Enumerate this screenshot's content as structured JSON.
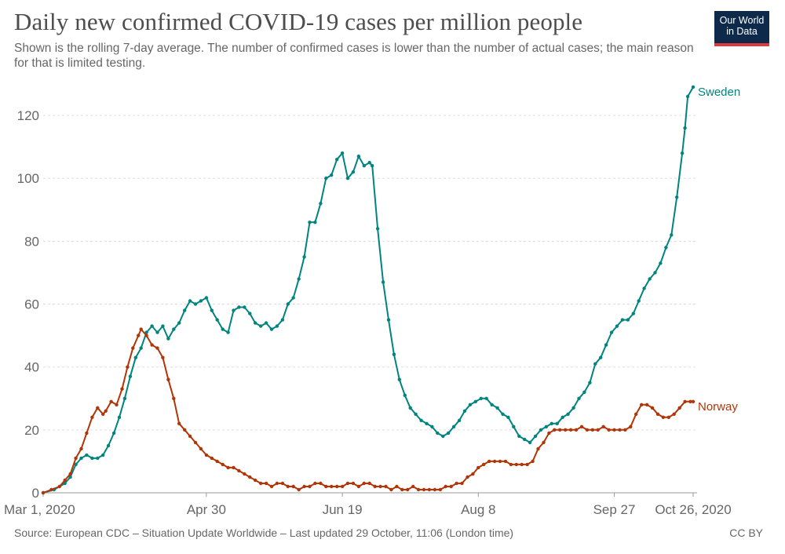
{
  "header": {
    "title": "Daily new confirmed COVID-19 cases per million people",
    "subtitle": "Shown is the rolling 7-day average. The number of confirmed cases is lower than the number of actual cases; the main reason for that is limited testing.",
    "logo_line1": "Our World",
    "logo_line2": "in Data"
  },
  "footer": {
    "source": "Source: European CDC – Situation Update Worldwide – Last updated 29 October, 11:06 (London time)",
    "license": "CC BY"
  },
  "colors": {
    "Sweden": "#00847e",
    "Norway": "#b13507",
    "grid": "#dddddd",
    "axis": "#999999"
  },
  "chart_data": {
    "type": "line",
    "title": "Daily new confirmed COVID-19 cases per million people",
    "xlabel": "",
    "ylabel": "",
    "x_domain_days": [
      0,
      239
    ],
    "ylim": [
      0,
      130
    ],
    "yticks": [
      0,
      20,
      40,
      60,
      80,
      100,
      120
    ],
    "xticks": [
      {
        "day": 0,
        "label": "Mar 1, 2020"
      },
      {
        "day": 60,
        "label": "Apr 30"
      },
      {
        "day": 110,
        "label": "Jun 19"
      },
      {
        "day": 160,
        "label": "Aug 8"
      },
      {
        "day": 210,
        "label": "Sep 27"
      },
      {
        "day": 239,
        "label": "Oct 26, 2020"
      }
    ],
    "grid": true,
    "series": [
      {
        "name": "Sweden",
        "points": [
          [
            0,
            0
          ],
          [
            4,
            1
          ],
          [
            8,
            3
          ],
          [
            10,
            5
          ],
          [
            12,
            9
          ],
          [
            14,
            11
          ],
          [
            16,
            12
          ],
          [
            18,
            11
          ],
          [
            20,
            11
          ],
          [
            22,
            12
          ],
          [
            24,
            15
          ],
          [
            26,
            19
          ],
          [
            28,
            24
          ],
          [
            30,
            30
          ],
          [
            32,
            37
          ],
          [
            34,
            43
          ],
          [
            36,
            46
          ],
          [
            38,
            51
          ],
          [
            40,
            53
          ],
          [
            42,
            51
          ],
          [
            44,
            53
          ],
          [
            46,
            49
          ],
          [
            48,
            52
          ],
          [
            50,
            54
          ],
          [
            52,
            58
          ],
          [
            54,
            61
          ],
          [
            56,
            60
          ],
          [
            58,
            61
          ],
          [
            60,
            62
          ],
          [
            62,
            58
          ],
          [
            64,
            55
          ],
          [
            66,
            52
          ],
          [
            68,
            51
          ],
          [
            70,
            58
          ],
          [
            72,
            59
          ],
          [
            74,
            59
          ],
          [
            76,
            57
          ],
          [
            78,
            54
          ],
          [
            80,
            53
          ],
          [
            82,
            54
          ],
          [
            84,
            52
          ],
          [
            86,
            53
          ],
          [
            88,
            55
          ],
          [
            90,
            60
          ],
          [
            92,
            62
          ],
          [
            94,
            68
          ],
          [
            96,
            75
          ],
          [
            98,
            86
          ],
          [
            100,
            86
          ],
          [
            102,
            92
          ],
          [
            104,
            100
          ],
          [
            106,
            101
          ],
          [
            108,
            106
          ],
          [
            110,
            108
          ],
          [
            112,
            100
          ],
          [
            114,
            102
          ],
          [
            116,
            107
          ],
          [
            118,
            104
          ],
          [
            120,
            105
          ],
          [
            121,
            104
          ],
          [
            123,
            84
          ],
          [
            125,
            67
          ],
          [
            127,
            55
          ],
          [
            129,
            44
          ],
          [
            131,
            36
          ],
          [
            133,
            31
          ],
          [
            135,
            27
          ],
          [
            137,
            25
          ],
          [
            139,
            23
          ],
          [
            141,
            22
          ],
          [
            143,
            21
          ],
          [
            145,
            19
          ],
          [
            147,
            18
          ],
          [
            149,
            19
          ],
          [
            151,
            21
          ],
          [
            153,
            23
          ],
          [
            155,
            26
          ],
          [
            157,
            28
          ],
          [
            159,
            29
          ],
          [
            161,
            30
          ],
          [
            163,
            30
          ],
          [
            165,
            28
          ],
          [
            167,
            27
          ],
          [
            169,
            25
          ],
          [
            171,
            24
          ],
          [
            173,
            21
          ],
          [
            175,
            18
          ],
          [
            177,
            17
          ],
          [
            179,
            16
          ],
          [
            181,
            18
          ],
          [
            183,
            20
          ],
          [
            185,
            21
          ],
          [
            187,
            22
          ],
          [
            189,
            22
          ],
          [
            191,
            24
          ],
          [
            193,
            25
          ],
          [
            195,
            27
          ],
          [
            197,
            30
          ],
          [
            199,
            32
          ],
          [
            201,
            35
          ],
          [
            203,
            41
          ],
          [
            205,
            43
          ],
          [
            207,
            47
          ],
          [
            209,
            51
          ],
          [
            211,
            53
          ],
          [
            213,
            55
          ],
          [
            215,
            55
          ],
          [
            217,
            57
          ],
          [
            219,
            61
          ],
          [
            221,
            65
          ],
          [
            223,
            68
          ],
          [
            225,
            70
          ],
          [
            227,
            73
          ],
          [
            229,
            78
          ],
          [
            231,
            82
          ],
          [
            233,
            94
          ],
          [
            235,
            108
          ],
          [
            236,
            116
          ],
          [
            237,
            126
          ],
          [
            239,
            129
          ]
        ]
      },
      {
        "name": "Norway",
        "points": [
          [
            0,
            0
          ],
          [
            3,
            1
          ],
          [
            6,
            2
          ],
          [
            8,
            4
          ],
          [
            10,
            6
          ],
          [
            12,
            11
          ],
          [
            14,
            14
          ],
          [
            16,
            19
          ],
          [
            18,
            24
          ],
          [
            20,
            27
          ],
          [
            22,
            25
          ],
          [
            23,
            26
          ],
          [
            25,
            29
          ],
          [
            27,
            28
          ],
          [
            29,
            33
          ],
          [
            31,
            40
          ],
          [
            33,
            46
          ],
          [
            35,
            50
          ],
          [
            36,
            52
          ],
          [
            38,
            50
          ],
          [
            40,
            47
          ],
          [
            42,
            46
          ],
          [
            44,
            43
          ],
          [
            46,
            36
          ],
          [
            48,
            30
          ],
          [
            50,
            22
          ],
          [
            52,
            20
          ],
          [
            54,
            18
          ],
          [
            56,
            16
          ],
          [
            58,
            14
          ],
          [
            60,
            12
          ],
          [
            62,
            11
          ],
          [
            64,
            10
          ],
          [
            66,
            9
          ],
          [
            68,
            8
          ],
          [
            70,
            8
          ],
          [
            72,
            7
          ],
          [
            74,
            6
          ],
          [
            76,
            5
          ],
          [
            78,
            4
          ],
          [
            80,
            3
          ],
          [
            82,
            3
          ],
          [
            84,
            2
          ],
          [
            86,
            3
          ],
          [
            88,
            3
          ],
          [
            90,
            2
          ],
          [
            92,
            2
          ],
          [
            94,
            1
          ],
          [
            96,
            2
          ],
          [
            98,
            2
          ],
          [
            100,
            3
          ],
          [
            102,
            3
          ],
          [
            104,
            2
          ],
          [
            106,
            2
          ],
          [
            108,
            2
          ],
          [
            110,
            2
          ],
          [
            112,
            3
          ],
          [
            114,
            3
          ],
          [
            116,
            2
          ],
          [
            118,
            3
          ],
          [
            120,
            3
          ],
          [
            122,
            2
          ],
          [
            124,
            2
          ],
          [
            126,
            2
          ],
          [
            128,
            1
          ],
          [
            130,
            2
          ],
          [
            132,
            1
          ],
          [
            134,
            1
          ],
          [
            136,
            2
          ],
          [
            138,
            1
          ],
          [
            140,
            1
          ],
          [
            142,
            1
          ],
          [
            144,
            1
          ],
          [
            146,
            1
          ],
          [
            148,
            2
          ],
          [
            150,
            2
          ],
          [
            152,
            3
          ],
          [
            154,
            3
          ],
          [
            156,
            5
          ],
          [
            158,
            6
          ],
          [
            160,
            8
          ],
          [
            162,
            9
          ],
          [
            164,
            10
          ],
          [
            166,
            10
          ],
          [
            168,
            10
          ],
          [
            170,
            10
          ],
          [
            172,
            9
          ],
          [
            174,
            9
          ],
          [
            176,
            9
          ],
          [
            178,
            9
          ],
          [
            180,
            10
          ],
          [
            182,
            14
          ],
          [
            184,
            16
          ],
          [
            186,
            19
          ],
          [
            188,
            20
          ],
          [
            190,
            20
          ],
          [
            192,
            20
          ],
          [
            194,
            20
          ],
          [
            196,
            20
          ],
          [
            198,
            21
          ],
          [
            200,
            20
          ],
          [
            202,
            20
          ],
          [
            204,
            20
          ],
          [
            206,
            21
          ],
          [
            208,
            20
          ],
          [
            210,
            20
          ],
          [
            212,
            20
          ],
          [
            214,
            20
          ],
          [
            216,
            21
          ],
          [
            218,
            25
          ],
          [
            220,
            28
          ],
          [
            222,
            28
          ],
          [
            224,
            27
          ],
          [
            226,
            25
          ],
          [
            228,
            24
          ],
          [
            230,
            24
          ],
          [
            232,
            25
          ],
          [
            234,
            27
          ],
          [
            236,
            29
          ],
          [
            238,
            29
          ],
          [
            239,
            29
          ]
        ]
      }
    ]
  }
}
